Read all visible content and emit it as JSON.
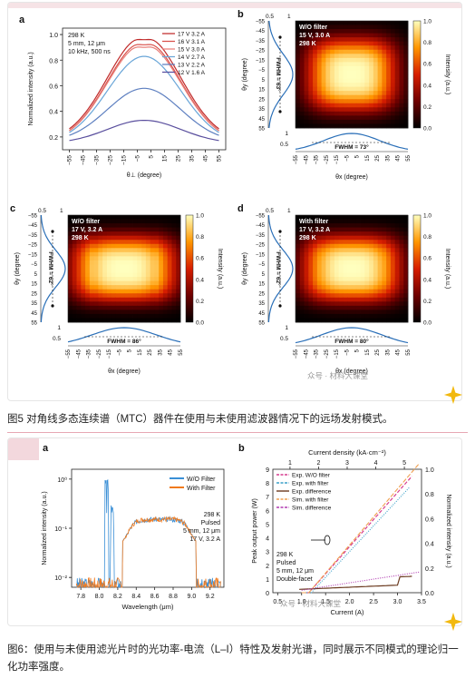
{
  "fig5": {
    "caption": "图5 对角线多态连续谱（MTC）器件在使用与未使用滤波器情况下的远场发射模式。",
    "panel_a": {
      "label": "a",
      "info": [
        "298 K",
        "5 mm, 12 μm",
        "10 kHz, 500 ns"
      ],
      "ylabel": "Normalized intensity (a.u.)",
      "xlabel": "θ⊥ (degree)",
      "x_ticks": [
        "−55",
        "−45",
        "−35",
        "−25",
        "−15",
        "−5",
        "5",
        "15",
        "25",
        "35",
        "45",
        "55"
      ],
      "y_ticks": [
        "0.2",
        "0.4",
        "0.6",
        "0.8",
        "1.0"
      ],
      "legend": [
        "17 V 3.2 A",
        "16 V 3.1 A",
        "15 V 3.0 A",
        "14 V 2.7 A",
        "13 V 2.2 A",
        "12 V 1.6 A"
      ],
      "colors": [
        "#c02a2a",
        "#d8504a",
        "#e9807a",
        "#6aa6d8",
        "#5d7fc0",
        "#5a4f9e"
      ]
    },
    "panel_b": {
      "label": "b",
      "info": [
        "W/O filter",
        "15 V, 3.0 A",
        "298 K"
      ],
      "fwhm_y": "FWHM = 63°",
      "fwhm_x": "FWHM = 73°"
    },
    "panel_c": {
      "label": "c",
      "info": [
        "W/O filter",
        "17 V, 3.2 A",
        "298 K"
      ],
      "fwhm_y": "FWHM = 62°",
      "fwhm_x": "FWHM = 86°"
    },
    "panel_d": {
      "label": "d",
      "info": [
        "With filter",
        "17 V, 3.2 A",
        "298 K"
      ],
      "fwhm_y": "FWHM = 62°",
      "fwhm_x": "FWHM = 80°"
    },
    "heatmap_common": {
      "ylabel": "θy (degree)",
      "xlabel": "θx (degree)",
      "cbar_label": "Intensity (a.u.)",
      "cbar_ticks": [
        "0.0",
        "0.2",
        "0.4",
        "0.6",
        "0.8",
        "1.0"
      ],
      "y_ticks": [
        "−55",
        "−45",
        "−35",
        "−25",
        "−15",
        "−5",
        "5",
        "15",
        "25",
        "35",
        "45",
        "55"
      ],
      "x_ticks": [
        "−55",
        "−45",
        "−35",
        "−25",
        "−15",
        "−5",
        "5",
        "15",
        "25",
        "35",
        "45",
        "55"
      ],
      "side_ticks": [
        "0.5",
        "1"
      ],
      "bottom_ticks": [
        "1",
        "0.5"
      ]
    },
    "watermark": "众号 · 材料大课堂"
  },
  "fig6": {
    "caption": "图6：使用与未使用滤光片时的光功率-电流（L–I）特性及发射光谱，同时展示不同模式的理论归一化功率强度。",
    "panel_a": {
      "label": "a",
      "legend": [
        "W/O Filter",
        "With Filter"
      ],
      "colors": [
        "#3a8fd6",
        "#f07a1e"
      ],
      "info": [
        "298 K",
        "Pulsed",
        "5 mm, 12 μm",
        "17 V, 3.2 A"
      ],
      "ylabel": "Normalized intensity (a.u.)",
      "xlabel": "Wavelength (μm)",
      "x_ticks": [
        "7.8",
        "8.0",
        "8.2",
        "8.4",
        "8.6",
        "8.8",
        "9.0",
        "9.2"
      ],
      "y_ticks": [
        "10⁰",
        "10⁻¹",
        "10⁻²"
      ]
    },
    "panel_b": {
      "label": "b",
      "top_xlabel": "Current density (kA·cm⁻²)",
      "top_ticks": [
        "1",
        "2",
        "3",
        "4",
        "5"
      ],
      "xlabel": "Current (A)",
      "x_ticks": [
        "0.5",
        "1.0",
        "1.5",
        "2.0",
        "2.5",
        "3.0",
        "3.5"
      ],
      "ylabel_left": "Peak output power (W)",
      "left_ticks": [
        "0",
        "1",
        "2",
        "3",
        "4",
        "5",
        "6",
        "7",
        "8",
        "9"
      ],
      "ylabel_right": "Normalized intensity (a.u.)",
      "right_ticks": [
        "0.0",
        "0.2",
        "0.4",
        "0.6",
        "0.8",
        "1.0"
      ],
      "legend": [
        "Exp. W/O filter",
        "Exp. with filter",
        "Exp. difference",
        "Sim. with filter",
        "Sim. difference"
      ],
      "colors": [
        "#d63b8e",
        "#3aa0c8",
        "#6b3a1f",
        "#f0a050",
        "#b03ab0"
      ],
      "info": [
        "298 K",
        "Pulsed",
        "5 mm, 12 μm",
        "Double-facet"
      ]
    },
    "watermark": "众号 · 材料大课堂"
  }
}
